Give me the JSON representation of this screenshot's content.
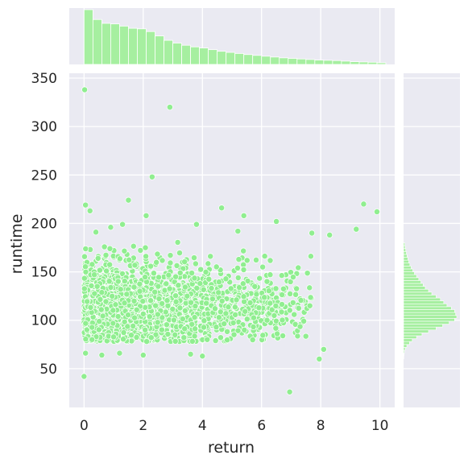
{
  "chart_data": {
    "type": "jointplot",
    "xlabel": "return",
    "ylabel": "runtime",
    "xlim": [
      -0.5,
      10.5
    ],
    "ylim": [
      10,
      355
    ],
    "x_ticks": [
      0,
      2,
      4,
      6,
      8,
      10
    ],
    "y_ticks": [
      50,
      100,
      150,
      200,
      250,
      300,
      350
    ],
    "grid": true,
    "colors": {
      "point": "#90ee90",
      "point_edge": "#ffffff",
      "hist_fill": "#a6efa0",
      "hist_edge": "#ffffff",
      "background": "#eaeaf2",
      "grid": "#ffffff"
    },
    "marginal_x_hist": {
      "bin_edges_start": 0.0,
      "bin_width": 0.3,
      "counts": [
        1000,
        820,
        750,
        740,
        700,
        660,
        650,
        600,
        520,
        440,
        390,
        350,
        320,
        300,
        270,
        240,
        220,
        200,
        180,
        165,
        150,
        135,
        120,
        110,
        100,
        90,
        80,
        75,
        70,
        60,
        50,
        45,
        40,
        30
      ]
    },
    "marginal_y_hist": {
      "bin_edges_start": 60,
      "bin_width": 3,
      "counts": [
        2,
        4,
        8,
        15,
        30,
        55,
        80,
        120,
        170,
        230,
        300,
        360,
        420,
        470,
        490,
        480,
        470,
        440,
        400,
        370,
        340,
        300,
        260,
        230,
        200,
        180,
        160,
        140,
        120,
        100,
        85,
        70,
        58,
        48,
        40,
        32,
        26,
        20,
        15,
        12
      ]
    },
    "outliers": [
      {
        "x": 0.02,
        "y": 338
      },
      {
        "x": 2.9,
        "y": 320
      },
      {
        "x": 2.3,
        "y": 248
      },
      {
        "x": 1.5,
        "y": 224
      },
      {
        "x": 0.05,
        "y": 219
      },
      {
        "x": 9.45,
        "y": 220
      },
      {
        "x": 4.65,
        "y": 216
      },
      {
        "x": 9.9,
        "y": 212
      },
      {
        "x": 0.2,
        "y": 213
      },
      {
        "x": 2.1,
        "y": 208
      },
      {
        "x": 5.4,
        "y": 208
      },
      {
        "x": 6.5,
        "y": 202
      },
      {
        "x": 0.0,
        "y": 42
      },
      {
        "x": 6.95,
        "y": 26
      },
      {
        "x": 7.95,
        "y": 60
      },
      {
        "x": 8.1,
        "y": 70
      },
      {
        "x": 0.6,
        "y": 64
      },
      {
        "x": 1.2,
        "y": 66
      },
      {
        "x": 2.0,
        "y": 64
      },
      {
        "x": 4.0,
        "y": 63
      },
      {
        "x": 3.6,
        "y": 65
      },
      {
        "x": 0.05,
        "y": 66
      },
      {
        "x": 8.3,
        "y": 188
      },
      {
        "x": 9.2,
        "y": 194
      },
      {
        "x": 7.7,
        "y": 190
      },
      {
        "x": 0.4,
        "y": 191
      },
      {
        "x": 3.8,
        "y": 199
      },
      {
        "x": 1.3,
        "y": 199
      },
      {
        "x": 0.9,
        "y": 196
      },
      {
        "x": 5.2,
        "y": 192
      }
    ]
  }
}
